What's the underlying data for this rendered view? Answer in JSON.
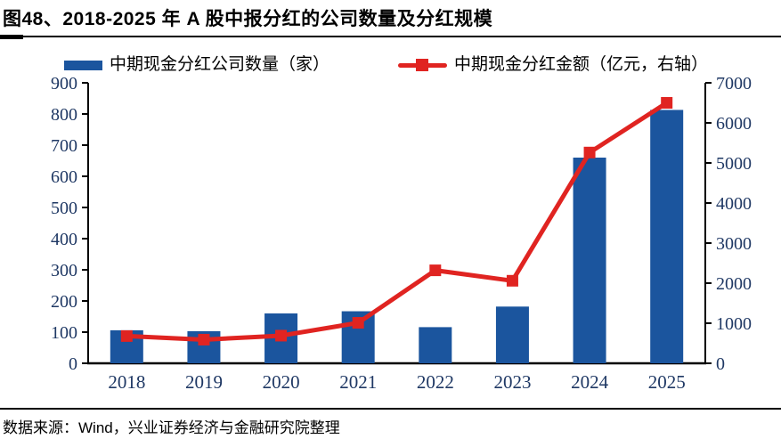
{
  "title": "图48、2018-2025 年 A 股中报分红的公司数量及分红规模",
  "footer": {
    "source": "数据来源：Wind，兴业证券经济与金融研究院整理"
  },
  "colors": {
    "bar_blue": "#1B559E",
    "line_red": "#E02421",
    "axis_text": "#1F3864",
    "axis_line": "#000000"
  },
  "chart_data": {
    "type": "bar",
    "subtype": "bar+line dual axis combo",
    "title": "2018-2025 年 A 股中报分红的公司数量及分红规模",
    "categories": [
      "2018",
      "2019",
      "2020",
      "2021",
      "2022",
      "2023",
      "2024",
      "2025"
    ],
    "series": [
      {
        "name": "中期现金分红公司数量（家）",
        "type": "bar",
        "axis": "left",
        "values": [
          106,
          103,
          160,
          167,
          116,
          182,
          660,
          813
        ]
      },
      {
        "name": "中期现金分红金额（亿元，右轴）",
        "type": "line",
        "axis": "right",
        "values": [
          680,
          590,
          690,
          1010,
          2320,
          2060,
          5260,
          6500
        ]
      }
    ],
    "left_axis": {
      "min": 0,
      "max": 900,
      "step": 100
    },
    "right_axis": {
      "min": 0,
      "max": 7000,
      "step": 1000
    },
    "legend_position": "top",
    "grid": false
  }
}
